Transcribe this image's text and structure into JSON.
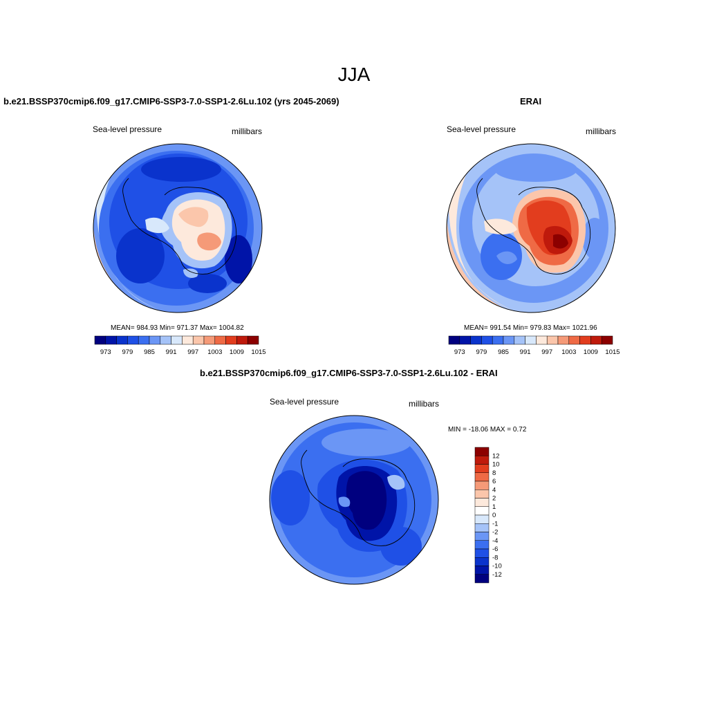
{
  "figure": {
    "title": "JJA",
    "panels": [
      {
        "title": "b.e21.BSSP370cmip6.f09_g17.CMIP6-SSP3-7.0-SSP1-2.6Lu.102 (yrs 2045-2069)",
        "left_label": "Sea-level pressure",
        "right_label": "millibars",
        "stats": "MEAN= 984.93  Min= 971.37  Max= 1004.82"
      },
      {
        "title": "ERAI",
        "left_label": "Sea-level pressure",
        "right_label": "millibars",
        "stats": "MEAN= 991.54  Min= 979.83  Max= 1021.96"
      },
      {
        "title": "b.e21.BSSP370cmip6.f09_g17.CMIP6-SSP3-7.0-SSP1-2.6Lu.102 - ERAI",
        "left_label": "Sea-level pressure",
        "right_label": "millibars",
        "stats": "MIN = -18.06 MAX =   0.72"
      }
    ]
  },
  "chart_data": [
    {
      "type": "heatmap",
      "title": "b.e21.BSSP370cmip6.f09_g17.CMIP6-SSP3-7.0-SSP1-2.6Lu.102 (yrs 2045-2069)",
      "projection": "polar stereographic (south pole)",
      "variable": "Sea-level pressure",
      "units": "millibars",
      "mean": 984.93,
      "min": 971.37,
      "max": 1004.82,
      "colorbar_ticks": [
        "973",
        "979",
        "985",
        "991",
        "997",
        "1003",
        "1009",
        "1015"
      ],
      "colorbar_colors": [
        "#00007f",
        "#0014a8",
        "#0a33cc",
        "#1f50e6",
        "#3b6ff0",
        "#6b96f5",
        "#a5c3f8",
        "#d8e8fb",
        "#fde9dc",
        "#fbc6ab",
        "#f59a78",
        "#ef6a45",
        "#e23d1e",
        "#bf1a0c",
        "#8c0000"
      ]
    },
    {
      "type": "heatmap",
      "title": "ERAI",
      "projection": "polar stereographic (south pole)",
      "variable": "Sea-level pressure",
      "units": "millibars",
      "mean": 991.54,
      "min": 979.83,
      "max": 1021.96,
      "colorbar_ticks": [
        "973",
        "979",
        "985",
        "991",
        "997",
        "1003",
        "1009",
        "1015"
      ],
      "colorbar_colors": [
        "#00007f",
        "#0014a8",
        "#0a33cc",
        "#1f50e6",
        "#3b6ff0",
        "#6b96f5",
        "#a5c3f8",
        "#d8e8fb",
        "#fde9dc",
        "#fbc6ab",
        "#f59a78",
        "#ef6a45",
        "#e23d1e",
        "#bf1a0c",
        "#8c0000"
      ]
    },
    {
      "type": "heatmap",
      "title": "b.e21.BSSP370cmip6.f09_g17.CMIP6-SSP3-7.0-SSP1-2.6Lu.102 - ERAI",
      "projection": "polar stereographic (south pole)",
      "variable": "Sea-level pressure",
      "units": "millibars",
      "min": -18.06,
      "max": 0.72,
      "colorbar_ticks": [
        "12",
        "10",
        "8",
        "6",
        "4",
        "2",
        "1",
        "0",
        "-1",
        "-2",
        "-4",
        "-6",
        "-8",
        "-10",
        "-12"
      ],
      "colorbar_colors": [
        "#8c0000",
        "#bf1a0c",
        "#e23d1e",
        "#ef6a45",
        "#f59a78",
        "#fbc6ab",
        "#fde9dc",
        "#ffffff",
        "#d8e8fb",
        "#a5c3f8",
        "#6b96f5",
        "#3b6ff0",
        "#1f50e6",
        "#0a33cc",
        "#0014a8",
        "#00007f"
      ]
    }
  ]
}
